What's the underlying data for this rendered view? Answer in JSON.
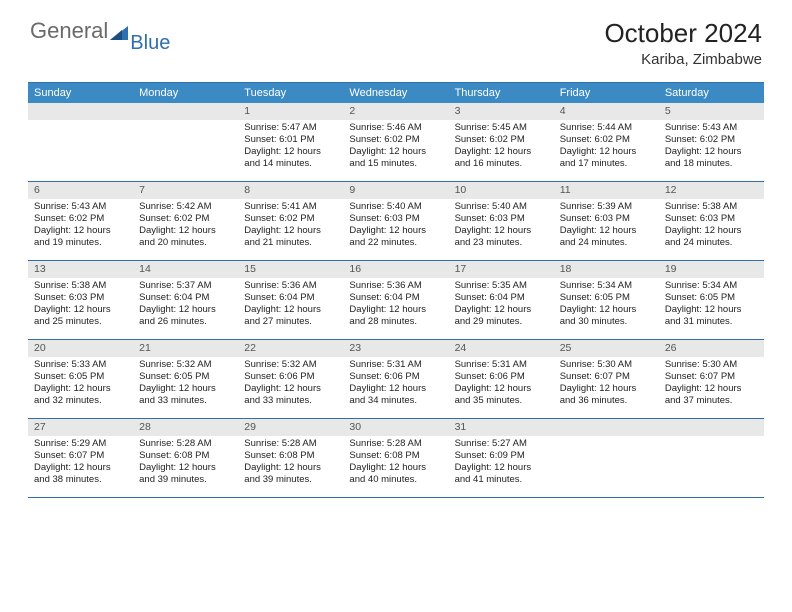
{
  "logo": {
    "word1": "General",
    "word2": "Blue"
  },
  "title": "October 2024",
  "location": "Kariba, Zimbabwe",
  "colors": {
    "header_bg": "#3b8ac4",
    "header_text": "#ffffff",
    "rule": "#2f6fb0",
    "daynum_bg": "#e8e8e8",
    "logo_gray": "#6a6a6a",
    "logo_blue": "#2f6fb0"
  },
  "dow": [
    "Sunday",
    "Monday",
    "Tuesday",
    "Wednesday",
    "Thursday",
    "Friday",
    "Saturday"
  ],
  "weeks": [
    [
      null,
      null,
      {
        "n": "1",
        "sr": "Sunrise: 5:47 AM",
        "ss": "Sunset: 6:01 PM",
        "dl": "Daylight: 12 hours and 14 minutes."
      },
      {
        "n": "2",
        "sr": "Sunrise: 5:46 AM",
        "ss": "Sunset: 6:02 PM",
        "dl": "Daylight: 12 hours and 15 minutes."
      },
      {
        "n": "3",
        "sr": "Sunrise: 5:45 AM",
        "ss": "Sunset: 6:02 PM",
        "dl": "Daylight: 12 hours and 16 minutes."
      },
      {
        "n": "4",
        "sr": "Sunrise: 5:44 AM",
        "ss": "Sunset: 6:02 PM",
        "dl": "Daylight: 12 hours and 17 minutes."
      },
      {
        "n": "5",
        "sr": "Sunrise: 5:43 AM",
        "ss": "Sunset: 6:02 PM",
        "dl": "Daylight: 12 hours and 18 minutes."
      }
    ],
    [
      {
        "n": "6",
        "sr": "Sunrise: 5:43 AM",
        "ss": "Sunset: 6:02 PM",
        "dl": "Daylight: 12 hours and 19 minutes."
      },
      {
        "n": "7",
        "sr": "Sunrise: 5:42 AM",
        "ss": "Sunset: 6:02 PM",
        "dl": "Daylight: 12 hours and 20 minutes."
      },
      {
        "n": "8",
        "sr": "Sunrise: 5:41 AM",
        "ss": "Sunset: 6:02 PM",
        "dl": "Daylight: 12 hours and 21 minutes."
      },
      {
        "n": "9",
        "sr": "Sunrise: 5:40 AM",
        "ss": "Sunset: 6:03 PM",
        "dl": "Daylight: 12 hours and 22 minutes."
      },
      {
        "n": "10",
        "sr": "Sunrise: 5:40 AM",
        "ss": "Sunset: 6:03 PM",
        "dl": "Daylight: 12 hours and 23 minutes."
      },
      {
        "n": "11",
        "sr": "Sunrise: 5:39 AM",
        "ss": "Sunset: 6:03 PM",
        "dl": "Daylight: 12 hours and 24 minutes."
      },
      {
        "n": "12",
        "sr": "Sunrise: 5:38 AM",
        "ss": "Sunset: 6:03 PM",
        "dl": "Daylight: 12 hours and 24 minutes."
      }
    ],
    [
      {
        "n": "13",
        "sr": "Sunrise: 5:38 AM",
        "ss": "Sunset: 6:03 PM",
        "dl": "Daylight: 12 hours and 25 minutes."
      },
      {
        "n": "14",
        "sr": "Sunrise: 5:37 AM",
        "ss": "Sunset: 6:04 PM",
        "dl": "Daylight: 12 hours and 26 minutes."
      },
      {
        "n": "15",
        "sr": "Sunrise: 5:36 AM",
        "ss": "Sunset: 6:04 PM",
        "dl": "Daylight: 12 hours and 27 minutes."
      },
      {
        "n": "16",
        "sr": "Sunrise: 5:36 AM",
        "ss": "Sunset: 6:04 PM",
        "dl": "Daylight: 12 hours and 28 minutes."
      },
      {
        "n": "17",
        "sr": "Sunrise: 5:35 AM",
        "ss": "Sunset: 6:04 PM",
        "dl": "Daylight: 12 hours and 29 minutes."
      },
      {
        "n": "18",
        "sr": "Sunrise: 5:34 AM",
        "ss": "Sunset: 6:05 PM",
        "dl": "Daylight: 12 hours and 30 minutes."
      },
      {
        "n": "19",
        "sr": "Sunrise: 5:34 AM",
        "ss": "Sunset: 6:05 PM",
        "dl": "Daylight: 12 hours and 31 minutes."
      }
    ],
    [
      {
        "n": "20",
        "sr": "Sunrise: 5:33 AM",
        "ss": "Sunset: 6:05 PM",
        "dl": "Daylight: 12 hours and 32 minutes."
      },
      {
        "n": "21",
        "sr": "Sunrise: 5:32 AM",
        "ss": "Sunset: 6:05 PM",
        "dl": "Daylight: 12 hours and 33 minutes."
      },
      {
        "n": "22",
        "sr": "Sunrise: 5:32 AM",
        "ss": "Sunset: 6:06 PM",
        "dl": "Daylight: 12 hours and 33 minutes."
      },
      {
        "n": "23",
        "sr": "Sunrise: 5:31 AM",
        "ss": "Sunset: 6:06 PM",
        "dl": "Daylight: 12 hours and 34 minutes."
      },
      {
        "n": "24",
        "sr": "Sunrise: 5:31 AM",
        "ss": "Sunset: 6:06 PM",
        "dl": "Daylight: 12 hours and 35 minutes."
      },
      {
        "n": "25",
        "sr": "Sunrise: 5:30 AM",
        "ss": "Sunset: 6:07 PM",
        "dl": "Daylight: 12 hours and 36 minutes."
      },
      {
        "n": "26",
        "sr": "Sunrise: 5:30 AM",
        "ss": "Sunset: 6:07 PM",
        "dl": "Daylight: 12 hours and 37 minutes."
      }
    ],
    [
      {
        "n": "27",
        "sr": "Sunrise: 5:29 AM",
        "ss": "Sunset: 6:07 PM",
        "dl": "Daylight: 12 hours and 38 minutes."
      },
      {
        "n": "28",
        "sr": "Sunrise: 5:28 AM",
        "ss": "Sunset: 6:08 PM",
        "dl": "Daylight: 12 hours and 39 minutes."
      },
      {
        "n": "29",
        "sr": "Sunrise: 5:28 AM",
        "ss": "Sunset: 6:08 PM",
        "dl": "Daylight: 12 hours and 39 minutes."
      },
      {
        "n": "30",
        "sr": "Sunrise: 5:28 AM",
        "ss": "Sunset: 6:08 PM",
        "dl": "Daylight: 12 hours and 40 minutes."
      },
      {
        "n": "31",
        "sr": "Sunrise: 5:27 AM",
        "ss": "Sunset: 6:09 PM",
        "dl": "Daylight: 12 hours and 41 minutes."
      },
      null,
      null
    ]
  ]
}
